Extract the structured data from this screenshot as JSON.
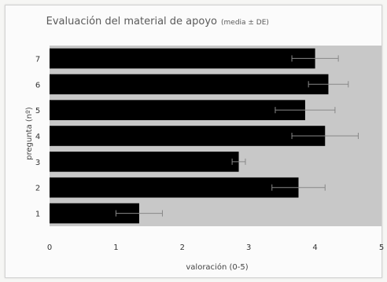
{
  "chart_data": {
    "type": "bar",
    "orientation": "horizontal",
    "title": "Evaluación del material de apoyo",
    "subtitle": "(media ± DE)",
    "xlabel": "valoración (0-5)",
    "ylabel": "pregunta (nº)",
    "xlim": [
      0,
      5
    ],
    "xticks": [
      "0",
      "1",
      "2",
      "3",
      "4",
      "5"
    ],
    "categories": [
      "1",
      "2",
      "3",
      "4",
      "5",
      "6",
      "7"
    ],
    "values": [
      1.35,
      3.75,
      2.85,
      4.15,
      3.85,
      4.2,
      4.0
    ],
    "errors": [
      0.35,
      0.4,
      0.1,
      0.5,
      0.45,
      0.3,
      0.35
    ],
    "bar_color": "#000000",
    "plot_background": "#c8c8c8",
    "grid": false,
    "error_bar_color": "#888888"
  }
}
